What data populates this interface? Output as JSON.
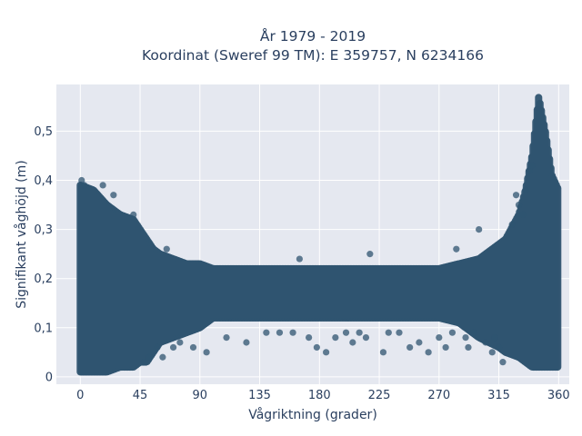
{
  "colors": {
    "plot_background": "#e5e8f0",
    "grid": "#ffffff",
    "marker": "#2f5470",
    "text": "#2a3f5f"
  },
  "chart_data": {
    "type": "scatter",
    "title": "År 1979 - 2019",
    "subtitle": "Koordinat (Sweref 99 TM): E 359757, N 6234166",
    "xlabel": "Vågriktning (grader)",
    "ylabel": "Signifikant våghöjd (m)",
    "xlim": [
      -18,
      368
    ],
    "ylim": [
      -0.015,
      0.595
    ],
    "xticks": [
      0,
      45,
      90,
      135,
      180,
      225,
      270,
      315,
      360
    ],
    "xtick_labels": [
      "0",
      "45",
      "90",
      "135",
      "180",
      "225",
      "270",
      "315",
      "360"
    ],
    "yticks": [
      0,
      0.1,
      0.2,
      0.3,
      0.4,
      0.5
    ],
    "ytick_labels": [
      "0",
      "0,1",
      "0,2",
      "0,3",
      "0,4",
      "0,5"
    ],
    "grid": true,
    "legend": "none",
    "envelope": {
      "description": "dense band of observations: min and max wave height per direction",
      "x": [
        0,
        10,
        20,
        30,
        40,
        45,
        50,
        55,
        60,
        70,
        80,
        90,
        100,
        135,
        180,
        225,
        270,
        285,
        300,
        315,
        320,
        330,
        335,
        340,
        345,
        350,
        355,
        360
      ],
      "ymin": [
        0.01,
        0.01,
        0.01,
        0.02,
        0.02,
        0.03,
        0.03,
        0.05,
        0.07,
        0.08,
        0.09,
        0.1,
        0.12,
        0.12,
        0.12,
        0.12,
        0.12,
        0.11,
        0.08,
        0.06,
        0.05,
        0.04,
        0.03,
        0.02,
        0.02,
        0.02,
        0.02,
        0.02
      ],
      "ymax": [
        0.39,
        0.38,
        0.35,
        0.33,
        0.32,
        0.3,
        0.28,
        0.26,
        0.25,
        0.24,
        0.23,
        0.23,
        0.22,
        0.22,
        0.22,
        0.22,
        0.22,
        0.23,
        0.24,
        0.27,
        0.28,
        0.33,
        0.38,
        0.45,
        0.57,
        0.5,
        0.41,
        0.38
      ]
    },
    "outliers": {
      "x": [
        1,
        3,
        17,
        25,
        40,
        48,
        52,
        58,
        62,
        65,
        70,
        75,
        85,
        95,
        110,
        125,
        140,
        150,
        160,
        165,
        172,
        178,
        185,
        192,
        200,
        205,
        210,
        215,
        218,
        228,
        232,
        240,
        248,
        255,
        262,
        270,
        275,
        280,
        283,
        290,
        292,
        296,
        300,
        305,
        310,
        312,
        315,
        318,
        325,
        328,
        330,
        333,
        335,
        338,
        340
      ],
      "y": [
        0.4,
        0.39,
        0.39,
        0.37,
        0.33,
        0.03,
        0.04,
        0.06,
        0.04,
        0.26,
        0.06,
        0.07,
        0.06,
        0.05,
        0.08,
        0.07,
        0.09,
        0.09,
        0.09,
        0.24,
        0.08,
        0.06,
        0.05,
        0.08,
        0.09,
        0.07,
        0.09,
        0.08,
        0.25,
        0.05,
        0.09,
        0.09,
        0.06,
        0.07,
        0.05,
        0.08,
        0.06,
        0.09,
        0.26,
        0.08,
        0.06,
        0.09,
        0.3,
        0.07,
        0.05,
        0.08,
        0.06,
        0.03,
        0.31,
        0.37,
        0.35,
        0.33,
        0.38,
        0.42,
        0.43
      ]
    }
  }
}
